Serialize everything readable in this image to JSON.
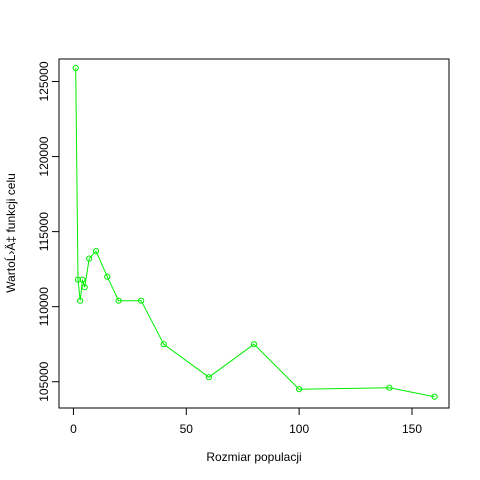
{
  "chart_data": {
    "type": "line",
    "xlabel": "Rozmiar populacji",
    "ylabel": "WartoĹ›Ä‡ funkcji celu",
    "xlim": [
      -6.4,
      166.4
    ],
    "ylim": [
      103250,
      126500
    ],
    "xticks": [
      0,
      50,
      100,
      150
    ],
    "yticks": [
      105000,
      110000,
      115000,
      120000,
      125000
    ],
    "grid": false,
    "legend": "none",
    "series": [
      {
        "color": "#00ee00",
        "x": [
          1,
          2,
          3,
          4,
          5,
          7,
          10,
          15,
          20,
          30,
          40,
          60,
          80,
          100,
          140,
          160
        ],
        "y": [
          125900,
          111800,
          110400,
          111800,
          111300,
          113200,
          113700,
          112000,
          110400,
          110400,
          107500,
          105300,
          107500,
          104500,
          104600,
          104000
        ]
      }
    ]
  }
}
